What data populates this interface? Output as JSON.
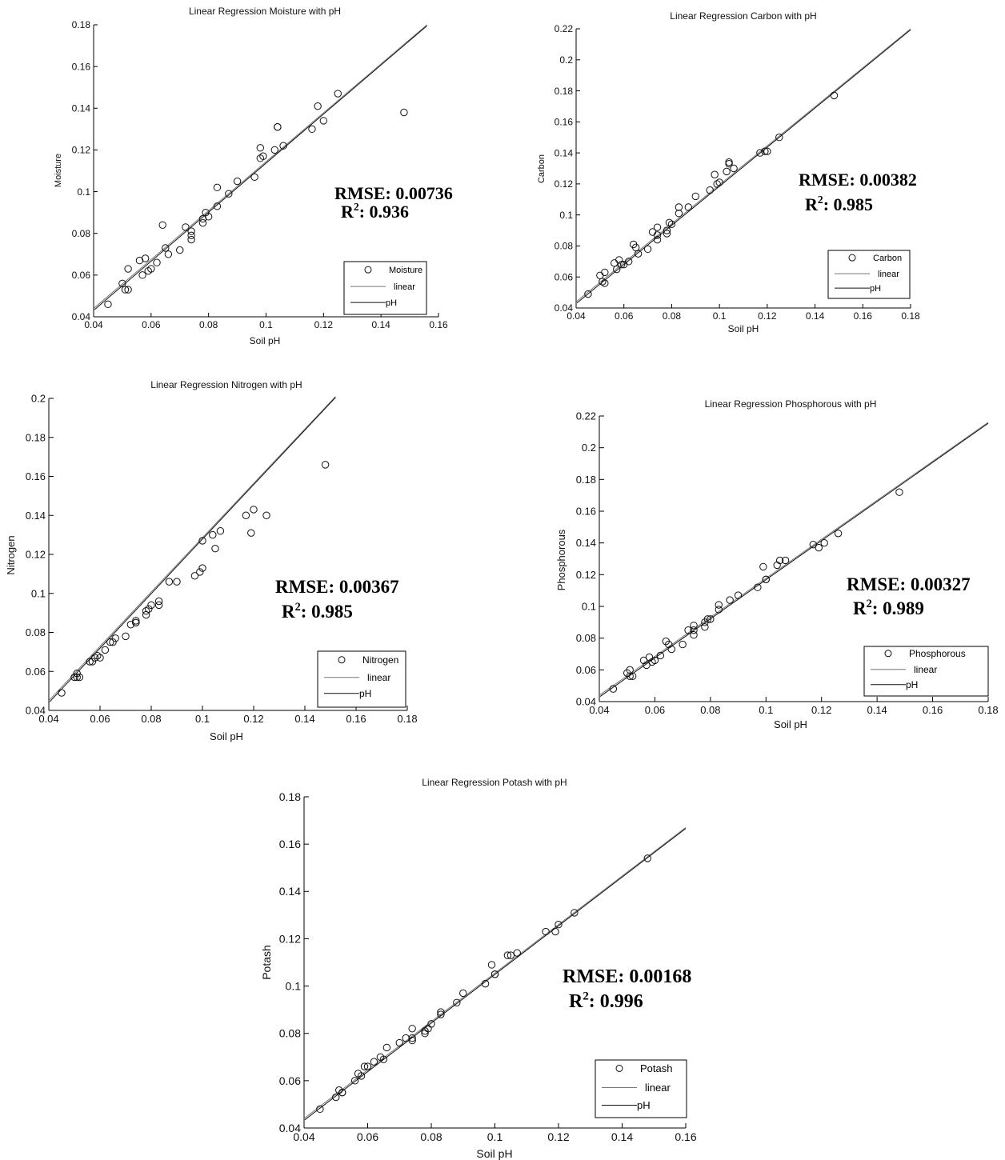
{
  "chart_data": [
    {
      "type": "scatter",
      "title": "Linear Regression Moisture with pH",
      "xlabel": "Soil pH",
      "ylabel": "Moisture",
      "xlim": [
        0.04,
        0.16
      ],
      "ylim": [
        0.04,
        0.18
      ],
      "xticks": [
        "0.04",
        "0.06",
        "0.08",
        "0.1",
        "0.12",
        "0.14",
        "0.16"
      ],
      "yticks": [
        "0.04",
        "0.06",
        "0.08",
        "0.1",
        "0.12",
        "0.14",
        "0.16",
        "0.18"
      ],
      "legend": [
        "Moisture",
        "linear",
        "pH"
      ],
      "legend_position": "bottom-right",
      "rmse_label": "RMSE: 0.00736",
      "r2_prefix": "R",
      "r2_sup": "2",
      "r2_value": ": 0.936",
      "fit_line": {
        "x": [
          0.04,
          0.156
        ],
        "y": [
          0.044,
          0.18
        ]
      },
      "x": [
        0.045,
        0.05,
        0.051,
        0.052,
        0.052,
        0.056,
        0.057,
        0.058,
        0.059,
        0.06,
        0.062,
        0.064,
        0.065,
        0.066,
        0.07,
        0.072,
        0.074,
        0.074,
        0.074,
        0.078,
        0.078,
        0.079,
        0.08,
        0.083,
        0.083,
        0.087,
        0.09,
        0.096,
        0.098,
        0.098,
        0.099,
        0.103,
        0.104,
        0.104,
        0.106,
        0.116,
        0.118,
        0.12,
        0.125,
        0.148
      ],
      "y": [
        0.046,
        0.056,
        0.053,
        0.053,
        0.063,
        0.067,
        0.06,
        0.068,
        0.062,
        0.063,
        0.066,
        0.084,
        0.073,
        0.07,
        0.072,
        0.083,
        0.077,
        0.081,
        0.079,
        0.085,
        0.087,
        0.09,
        0.088,
        0.093,
        0.102,
        0.099,
        0.105,
        0.107,
        0.116,
        0.121,
        0.117,
        0.12,
        0.131,
        0.131,
        0.122,
        0.13,
        0.141,
        0.134,
        0.147,
        0.138
      ]
    },
    {
      "type": "scatter",
      "title": "Linear Regression Carbon with pH",
      "xlabel": "Soil pH",
      "ylabel": "Carbon",
      "xlim": [
        0.04,
        0.18
      ],
      "ylim": [
        0.04,
        0.22
      ],
      "xticks": [
        "0.04",
        "0.06",
        "0.08",
        "0.1",
        "0.12",
        "0.14",
        "0.16",
        "0.18"
      ],
      "yticks": [
        "0.04",
        "0.06",
        "0.08",
        "0.1",
        "0.12",
        "0.14",
        "0.16",
        "0.18",
        "0.2",
        "0.22"
      ],
      "legend": [
        "Carbon",
        "linear",
        "pH"
      ],
      "legend_position": "bottom-right",
      "rmse_label": "RMSE: 0.00382",
      "r2_prefix": "R",
      "r2_sup": "2",
      "r2_value": ": 0.985",
      "fit_line": {
        "x": [
          0.04,
          0.18
        ],
        "y": [
          0.044,
          0.22
        ]
      },
      "x": [
        0.045,
        0.05,
        0.051,
        0.052,
        0.052,
        0.056,
        0.057,
        0.058,
        0.059,
        0.06,
        0.062,
        0.064,
        0.065,
        0.066,
        0.07,
        0.072,
        0.074,
        0.074,
        0.074,
        0.078,
        0.078,
        0.079,
        0.08,
        0.083,
        0.083,
        0.087,
        0.09,
        0.096,
        0.098,
        0.099,
        0.1,
        0.103,
        0.104,
        0.104,
        0.106,
        0.117,
        0.119,
        0.12,
        0.125,
        0.148
      ],
      "y": [
        0.049,
        0.061,
        0.057,
        0.063,
        0.056,
        0.069,
        0.065,
        0.071,
        0.068,
        0.068,
        0.07,
        0.081,
        0.079,
        0.075,
        0.078,
        0.089,
        0.084,
        0.087,
        0.092,
        0.09,
        0.088,
        0.095,
        0.094,
        0.101,
        0.105,
        0.105,
        0.112,
        0.116,
        0.126,
        0.12,
        0.121,
        0.128,
        0.133,
        0.134,
        0.13,
        0.14,
        0.141,
        0.141,
        0.15,
        0.177
      ]
    },
    {
      "type": "scatter",
      "title": "Linear Regression Nitrogen with pH",
      "xlabel": "Soil pH",
      "ylabel": "Nitrogen",
      "xlim": [
        0.04,
        0.18
      ],
      "ylim": [
        0.04,
        0.2
      ],
      "xticks": [
        "0.04",
        "0.06",
        "0.08",
        "0.1",
        "0.12",
        "0.14",
        "0.16",
        "0.18"
      ],
      "yticks": [
        "0.04",
        "0.06",
        "0.08",
        "0.1",
        "0.12",
        "0.14",
        "0.16",
        "0.18",
        "0.2"
      ],
      "legend": [
        "Nitrogen",
        "linear",
        "pH"
      ],
      "legend_position": "bottom-right",
      "rmse_label": "RMSE: 0.00367",
      "r2_prefix": "R",
      "r2_sup": "2",
      "r2_value": ": 0.985",
      "fit_line": {
        "x": [
          0.04,
          0.152
        ],
        "y": [
          0.045,
          0.201
        ]
      },
      "x": [
        0.045,
        0.05,
        0.051,
        0.051,
        0.052,
        0.056,
        0.057,
        0.058,
        0.059,
        0.06,
        0.062,
        0.064,
        0.065,
        0.066,
        0.07,
        0.072,
        0.074,
        0.074,
        0.074,
        0.078,
        0.078,
        0.079,
        0.08,
        0.083,
        0.083,
        0.087,
        0.09,
        0.097,
        0.099,
        0.1,
        0.1,
        0.104,
        0.105,
        0.107,
        0.117,
        0.119,
        0.12,
        0.125,
        0.148
      ],
      "y": [
        0.049,
        0.057,
        0.057,
        0.059,
        0.057,
        0.065,
        0.065,
        0.067,
        0.068,
        0.067,
        0.071,
        0.075,
        0.075,
        0.077,
        0.078,
        0.084,
        0.085,
        0.086,
        0.085,
        0.089,
        0.091,
        0.092,
        0.094,
        0.094,
        0.096,
        0.106,
        0.106,
        0.109,
        0.111,
        0.113,
        0.127,
        0.13,
        0.123,
        0.132,
        0.14,
        0.131,
        0.143,
        0.14,
        0.166
      ]
    },
    {
      "type": "scatter",
      "title": "Linear Regression Phosphorous with pH",
      "xlabel": "Soil pH",
      "ylabel": "Phosphorous",
      "xlim": [
        0.04,
        0.18
      ],
      "ylim": [
        0.04,
        0.22
      ],
      "xticks": [
        "0.04",
        "0.06",
        "0.08",
        "0.1",
        "0.12",
        "0.14",
        "0.16",
        "0.18"
      ],
      "yticks": [
        "0.04",
        "0.06",
        "0.08",
        "0.1",
        "0.12",
        "0.14",
        "0.16",
        "0.18",
        "0.2",
        "0.22"
      ],
      "legend": [
        "Phosphorous",
        "linear",
        "pH"
      ],
      "legend_position": "bottom-right",
      "rmse_label": "RMSE: 0.00327",
      "r2_prefix": "R",
      "r2_sup": "2",
      "r2_value": ": 0.989",
      "fit_line": {
        "x": [
          0.04,
          0.18
        ],
        "y": [
          0.044,
          0.216
        ]
      },
      "x": [
        0.045,
        0.05,
        0.051,
        0.051,
        0.052,
        0.056,
        0.057,
        0.058,
        0.059,
        0.06,
        0.062,
        0.064,
        0.065,
        0.066,
        0.07,
        0.072,
        0.074,
        0.074,
        0.074,
        0.078,
        0.078,
        0.079,
        0.08,
        0.083,
        0.083,
        0.087,
        0.09,
        0.097,
        0.099,
        0.1,
        0.1,
        0.104,
        0.105,
        0.107,
        0.117,
        0.119,
        0.121,
        0.126,
        0.148
      ],
      "y": [
        0.048,
        0.058,
        0.056,
        0.06,
        0.056,
        0.066,
        0.063,
        0.068,
        0.065,
        0.066,
        0.069,
        0.078,
        0.076,
        0.073,
        0.076,
        0.085,
        0.082,
        0.085,
        0.088,
        0.087,
        0.09,
        0.092,
        0.092,
        0.098,
        0.101,
        0.104,
        0.107,
        0.112,
        0.125,
        0.117,
        0.117,
        0.126,
        0.129,
        0.129,
        0.139,
        0.137,
        0.14,
        0.146,
        0.172
      ]
    },
    {
      "type": "scatter",
      "title": "Linear Regression Potash with pH",
      "xlabel": "Soil pH",
      "ylabel": "Potash",
      "xlim": [
        0.04,
        0.16
      ],
      "ylim": [
        0.04,
        0.18
      ],
      "xticks": [
        "0.04",
        "0.06",
        "0.08",
        "0.1",
        "0.12",
        "0.14",
        "0.16"
      ],
      "yticks": [
        "0.04",
        "0.06",
        "0.08",
        "0.1",
        "0.12",
        "0.14",
        "0.16",
        "0.18"
      ],
      "legend": [
        "Potash",
        "linear",
        "pH"
      ],
      "legend_position": "bottom-right",
      "rmse_label": "RMSE: 0.00168",
      "r2_prefix": "R",
      "r2_sup": "2",
      "r2_value": ": 0.996",
      "fit_line": {
        "x": [
          0.04,
          0.16
        ],
        "y": [
          0.044,
          0.167
        ]
      },
      "x": [
        0.045,
        0.05,
        0.051,
        0.052,
        0.052,
        0.056,
        0.057,
        0.058,
        0.059,
        0.06,
        0.062,
        0.064,
        0.065,
        0.066,
        0.07,
        0.072,
        0.074,
        0.074,
        0.074,
        0.078,
        0.078,
        0.079,
        0.08,
        0.083,
        0.083,
        0.088,
        0.09,
        0.097,
        0.099,
        0.1,
        0.1,
        0.104,
        0.105,
        0.107,
        0.116,
        0.119,
        0.12,
        0.125,
        0.148
      ],
      "y": [
        0.048,
        0.053,
        0.056,
        0.055,
        0.055,
        0.06,
        0.063,
        0.062,
        0.066,
        0.066,
        0.068,
        0.07,
        0.069,
        0.074,
        0.076,
        0.078,
        0.078,
        0.082,
        0.077,
        0.081,
        0.08,
        0.082,
        0.084,
        0.088,
        0.089,
        0.093,
        0.097,
        0.101,
        0.109,
        0.105,
        0.105,
        0.113,
        0.113,
        0.114,
        0.123,
        0.123,
        0.126,
        0.131,
        0.154
      ]
    }
  ]
}
